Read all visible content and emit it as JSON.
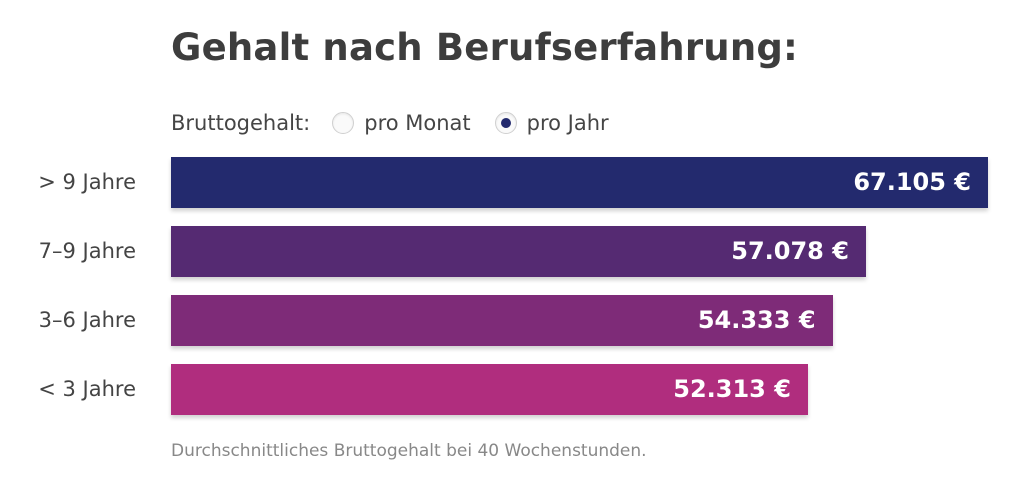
{
  "header": {
    "title": "Gehalt nach Berufserfahrung:"
  },
  "toggle": {
    "label": "Bruttogehalt:",
    "options": [
      {
        "label": "pro Monat",
        "checked": false
      },
      {
        "label": "pro Jahr",
        "checked": true
      }
    ]
  },
  "footnote": "Durchschnittliches Bruttogehalt bei 40 Wochenstunden.",
  "chart_data": {
    "type": "bar",
    "orientation": "horizontal",
    "title": "Gehalt nach Berufserfahrung:",
    "xlabel": "",
    "ylabel": "",
    "unit": "€",
    "categories": [
      "> 9 Jahre",
      "7–9 Jahre",
      "3–6 Jahre",
      "< 3 Jahre"
    ],
    "values": [
      67105,
      57078,
      54333,
      52313
    ],
    "value_labels": [
      "67.105 €",
      "57.078 €",
      "54.333 €",
      "52.313 €"
    ],
    "colors": [
      "#232a6e",
      "#552a72",
      "#7e2b78",
      "#b02d7e"
    ],
    "grid": false,
    "legend": "none"
  }
}
